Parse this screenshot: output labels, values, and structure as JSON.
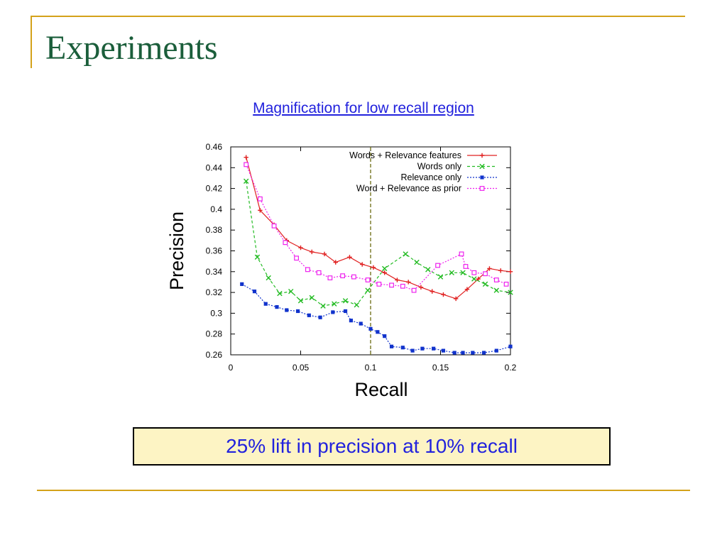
{
  "slide": {
    "title": "Experiments",
    "subtitle": "Magnification for low recall region",
    "callout": "25% lift in precision at 10% recall"
  },
  "chart_data": {
    "type": "line",
    "xlabel": "Recall",
    "ylabel": "Precision",
    "xlim": [
      0,
      0.2
    ],
    "ylim": [
      0.26,
      0.46
    ],
    "x_ticks": [
      "0",
      "0.05",
      "0.1",
      "0.15",
      "0.2"
    ],
    "y_ticks": [
      "0.26",
      "0.28",
      "0.3",
      "0.32",
      "0.34",
      "0.36",
      "0.38",
      "0.4",
      "0.42",
      "0.44",
      "0.46"
    ],
    "vertical_reference_line": 0.1,
    "legend_position": "top-right",
    "series": [
      {
        "name": "Words + Relevance features",
        "color": "#e02020",
        "line_style": "solid",
        "marker": "plus",
        "x": [
          0.011,
          0.021,
          0.031,
          0.04,
          0.05,
          0.058,
          0.067,
          0.075,
          0.085,
          0.094,
          0.102,
          0.11,
          0.119,
          0.127,
          0.136,
          0.144,
          0.152,
          0.161,
          0.169,
          0.177,
          0.185,
          0.193,
          0.2
        ],
        "y": [
          0.45,
          0.399,
          0.385,
          0.37,
          0.363,
          0.359,
          0.357,
          0.349,
          0.354,
          0.347,
          0.344,
          0.339,
          0.332,
          0.33,
          0.325,
          0.321,
          0.318,
          0.314,
          0.323,
          0.333,
          0.343,
          0.341,
          0.34
        ]
      },
      {
        "name": "Words only",
        "color": "#22bb22",
        "line_style": "dashed",
        "marker": "cross",
        "x": [
          0.011,
          0.019,
          0.027,
          0.035,
          0.043,
          0.05,
          0.058,
          0.066,
          0.074,
          0.082,
          0.09,
          0.098,
          0.11,
          0.125,
          0.133,
          0.141,
          0.15,
          0.158,
          0.166,
          0.174,
          0.182,
          0.19,
          0.2
        ],
        "y": [
          0.427,
          0.354,
          0.334,
          0.319,
          0.321,
          0.312,
          0.315,
          0.307,
          0.309,
          0.312,
          0.308,
          0.322,
          0.343,
          0.357,
          0.349,
          0.342,
          0.335,
          0.339,
          0.339,
          0.333,
          0.328,
          0.322,
          0.32
        ]
      },
      {
        "name": "Relevance only",
        "color": "#1133cc",
        "line_style": "dotted",
        "marker": "square-filled",
        "x": [
          0.008,
          0.017,
          0.025,
          0.033,
          0.04,
          0.048,
          0.056,
          0.064,
          0.073,
          0.082,
          0.086,
          0.093,
          0.1,
          0.105,
          0.11,
          0.115,
          0.123,
          0.13,
          0.137,
          0.145,
          0.152,
          0.16,
          0.166,
          0.173,
          0.181,
          0.19,
          0.2
        ],
        "y": [
          0.328,
          0.321,
          0.309,
          0.306,
          0.303,
          0.302,
          0.298,
          0.296,
          0.301,
          0.302,
          0.293,
          0.29,
          0.285,
          0.282,
          0.278,
          0.268,
          0.267,
          0.264,
          0.266,
          0.266,
          0.264,
          0.262,
          0.262,
          0.262,
          0.262,
          0.264,
          0.268
        ]
      },
      {
        "name": "Word + Relevance as prior",
        "color": "#ee22ee",
        "line_style": "dotted",
        "marker": "square-open",
        "x": [
          0.011,
          0.021,
          0.031,
          0.039,
          0.047,
          0.055,
          0.063,
          0.071,
          0.08,
          0.088,
          0.098,
          0.106,
          0.115,
          0.123,
          0.131,
          0.148,
          0.165,
          0.168,
          0.174,
          0.182,
          0.19,
          0.197
        ],
        "y": [
          0.443,
          0.41,
          0.384,
          0.368,
          0.353,
          0.342,
          0.339,
          0.334,
          0.336,
          0.335,
          0.332,
          0.328,
          0.327,
          0.326,
          0.322,
          0.346,
          0.357,
          0.345,
          0.339,
          0.338,
          0.332,
          0.328
        ]
      }
    ]
  }
}
